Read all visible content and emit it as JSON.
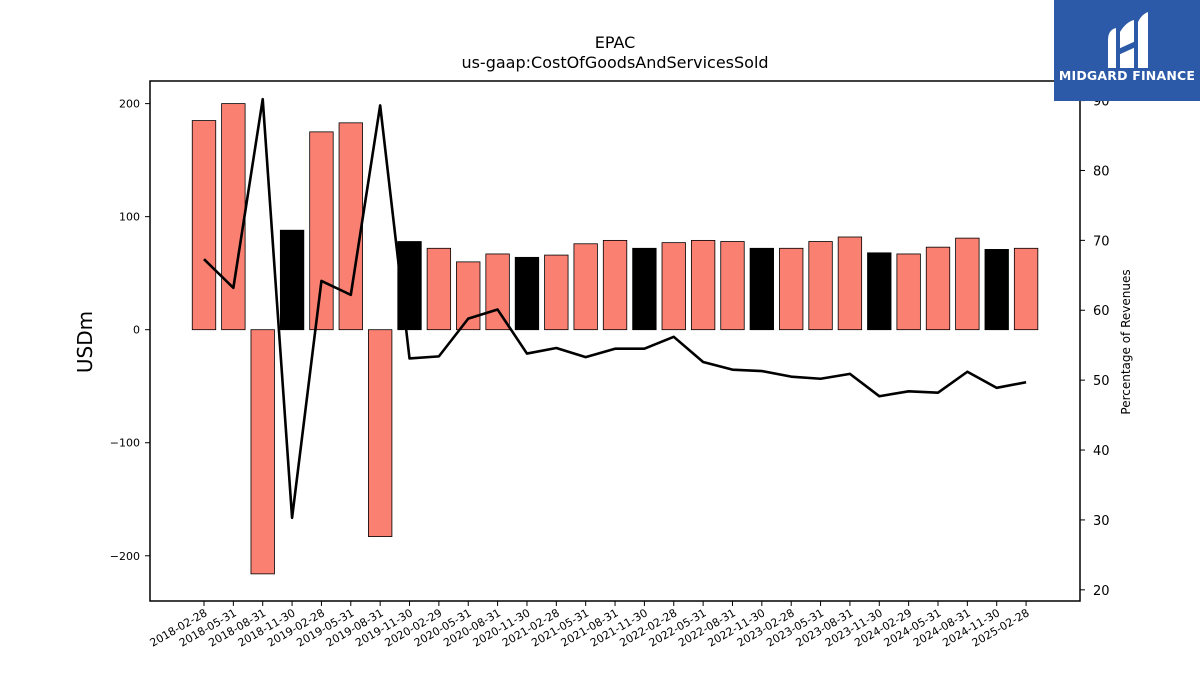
{
  "chart_data": {
    "type": "bar",
    "title": "EPAC",
    "subtitle": "us-gaap:CostOfGoodsAndServicesSold",
    "ylabel": "USDm",
    "y2label": "Percentage of Revenues",
    "ylim": [
      -240,
      220
    ],
    "y2lim": [
      18.4,
      92.8
    ],
    "yticks": [
      -200,
      -100,
      0,
      100,
      200
    ],
    "y2ticks": [
      20,
      30,
      40,
      50,
      60,
      70,
      80,
      90
    ],
    "grid": false,
    "categories": [
      "2018-02-28",
      "2018-05-31",
      "2018-08-31",
      "2018-11-30",
      "2019-02-28",
      "2019-05-31",
      "2019-08-31",
      "2019-11-30",
      "2020-02-29",
      "2020-05-31",
      "2020-08-31",
      "2020-11-30",
      "2021-02-28",
      "2021-05-31",
      "2021-08-31",
      "2021-11-30",
      "2022-02-28",
      "2022-05-31",
      "2022-08-31",
      "2022-11-30",
      "2023-02-28",
      "2023-05-31",
      "2023-08-31",
      "2023-11-30",
      "2024-02-29",
      "2024-05-31",
      "2024-08-31",
      "2024-11-30",
      "2025-02-28"
    ],
    "series": [
      {
        "type": "bar",
        "values": [
          185,
          200,
          -216,
          88,
          175,
          183,
          -183,
          78,
          72,
          60,
          67,
          64,
          66,
          76,
          79,
          72,
          77,
          79,
          78,
          72,
          72,
          78,
          82,
          68,
          67,
          73,
          81,
          71,
          72
        ],
        "colors": [
          "#fa8072",
          "#fa8072",
          "#fa8072",
          "#000000",
          "#fa8072",
          "#fa8072",
          "#fa8072",
          "#000000",
          "#fa8072",
          "#fa8072",
          "#fa8072",
          "#000000",
          "#fa8072",
          "#fa8072",
          "#fa8072",
          "#000000",
          "#fa8072",
          "#fa8072",
          "#fa8072",
          "#000000",
          "#fa8072",
          "#fa8072",
          "#fa8072",
          "#000000",
          "#fa8072",
          "#fa8072",
          "#fa8072",
          "#000000",
          "#fa8072"
        ]
      },
      {
        "type": "line",
        "axis": "right",
        "color": "#000000",
        "values": [
          67.3,
          63.2,
          90.2,
          30.3,
          64.2,
          62.2,
          89.3,
          53.1,
          53.4,
          58.8,
          60.1,
          53.8,
          54.6,
          53.3,
          54.5,
          54.5,
          56.2,
          52.6,
          51.5,
          51.3,
          50.5,
          50.2,
          50.9,
          47.7,
          48.4,
          48.2,
          51.2,
          48.9,
          49.7
        ]
      }
    ]
  },
  "logo": {
    "text": "MIDGARD FINANCE",
    "bg": "#2d5aa8"
  }
}
